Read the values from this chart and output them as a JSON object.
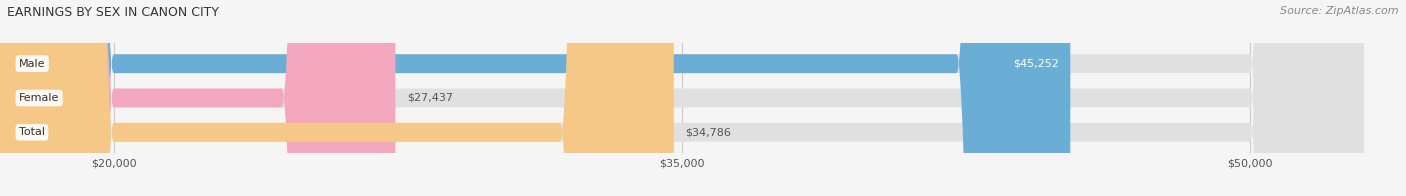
{
  "title": "EARNINGS BY SEX IN CANON CITY",
  "source": "Source: ZipAtlas.com",
  "categories": [
    "Male",
    "Female",
    "Total"
  ],
  "values": [
    45252,
    27437,
    34786
  ],
  "bar_colors": [
    "#6aaed6",
    "#f4a8c0",
    "#f5c888"
  ],
  "label_colors": [
    "#ffffff",
    "#555555",
    "#555555"
  ],
  "xmin": 17000,
  "xmax": 53000,
  "xticks": [
    20000,
    35000,
    50000
  ],
  "xtick_labels": [
    "$20,000",
    "$35,000",
    "$50,000"
  ],
  "bar_height": 0.55,
  "figsize": [
    14.06,
    1.96
  ],
  "dpi": 100,
  "title_fontsize": 9,
  "source_fontsize": 8,
  "label_fontsize": 8,
  "category_fontsize": 8,
  "tick_fontsize": 8
}
